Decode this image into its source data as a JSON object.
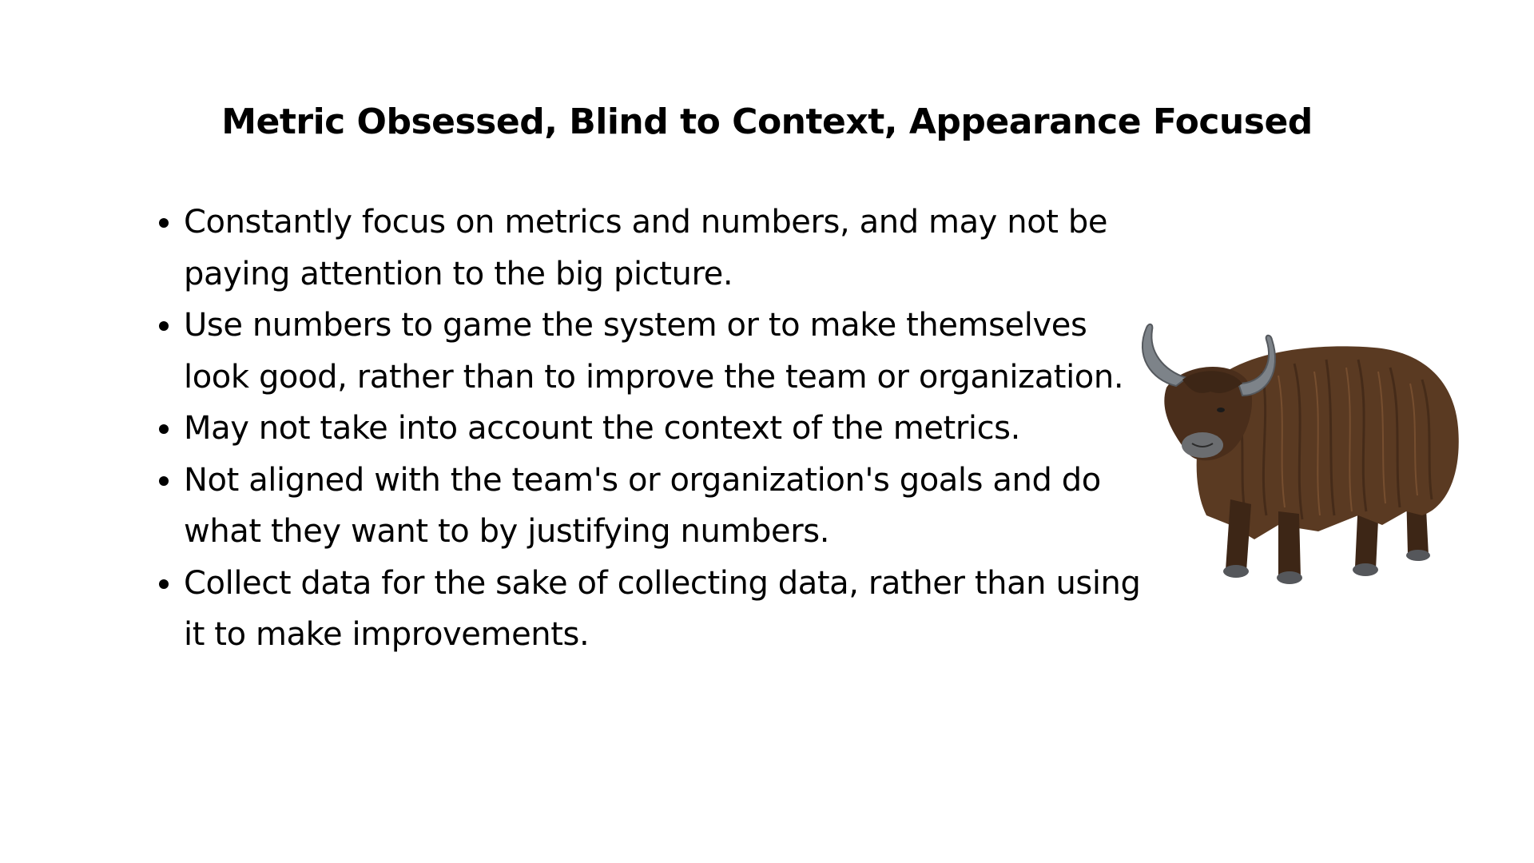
{
  "slide": {
    "title": "Metric Obsessed, Blind to Context, Appearance Focused",
    "bullets": [
      "Constantly focus on metrics and numbers, and may not be paying attention to the big picture.",
      "Use numbers to game the system or to make themselves look good, rather than to improve the team or organization.",
      "May not take into account the context of the metrics.",
      "Not aligned with the team's or organization's goals and do what they want to by justifying numbers.",
      "Collect data for the sake of collecting data, rather than using it to make improvements."
    ],
    "illustration": "yak-illustration",
    "colors": {
      "background": "#ffffff",
      "text": "#000000",
      "fur": "#5a3a22",
      "horn": "#7d8389"
    }
  }
}
